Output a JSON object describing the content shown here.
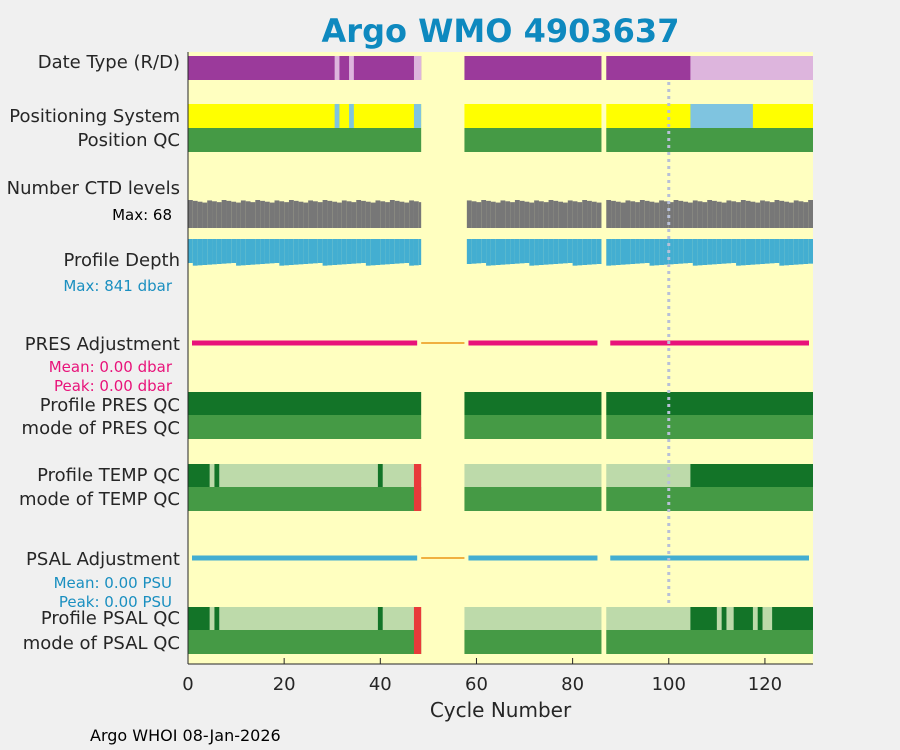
{
  "title": "Argo WMO 4903637",
  "footer": "Argo WHOI 08-Jan-2026",
  "rows": {
    "date_type": "Date Type (R/D)",
    "positioning": "Positioning System",
    "position_qc": "Position QC",
    "ctd_levels": "Number CTD levels",
    "ctd_max": "Max: 68",
    "profile_depth": "Profile Depth",
    "depth_max": "Max:  841 dbar",
    "pres_adj": "PRES Adjustment",
    "pres_mean": "Mean: 0.00 dbar",
    "pres_peak": "Peak: 0.00 dbar",
    "profile_pres_qc": "Profile PRES QC",
    "mode_pres_qc": "mode of PRES QC",
    "profile_temp_qc": "Profile TEMP QC",
    "mode_temp_qc": "mode of TEMP QC",
    "psal_adj": "PSAL Adjustment",
    "psal_mean": "Mean: 0.00 PSU",
    "psal_peak": "Peak: 0.00 PSU",
    "profile_psal_qc": "Profile PSAL QC",
    "mode_psal_qc": "mode of PSAL QC"
  },
  "colors": {
    "title": "#0e89bf",
    "background": "#ffffc0",
    "realtime": "#9b3a9b",
    "delayed": "#ddb5dd",
    "gps": "#ffff00",
    "iridium": "#7fc4e0",
    "qc_good": "#459a45",
    "qc_dark": "#137428",
    "qc_light": "#bddaaa",
    "qc_bad": "#e83a3a",
    "ctd": "#777777",
    "depth": "#43aed1",
    "pres_line": "#e8137a",
    "psal_line": "#43aed1",
    "gap_line": "#f0b040",
    "depth_text": "#1a8fc0",
    "pres_text": "#e8137a",
    "psal_text": "#1a8fc0",
    "marker": "#b8c0d8"
  },
  "chart_data": {
    "type": "table",
    "title": "Argo WMO 4903637",
    "xlabel": "Cycle Number",
    "ylabel": "",
    "xlim": [
      0,
      130
    ],
    "xticks": [
      0,
      20,
      40,
      60,
      80,
      100,
      120
    ],
    "marker_cycle": 100,
    "data_segments": [
      [
        0,
        48.5
      ],
      [
        57.5,
        86
      ],
      [
        87,
        130
      ]
    ],
    "date_type": {
      "delayed_ranges": [
        [
          30.5,
          31.5
        ],
        [
          33.5,
          34.5
        ],
        [
          47,
          48.5
        ],
        [
          104.5,
          130
        ]
      ]
    },
    "positioning": {
      "iridium_ranges": [
        [
          30.5,
          31.5
        ],
        [
          33.5,
          34.5
        ],
        [
          47,
          48.5
        ],
        [
          104.5,
          117.5
        ]
      ]
    },
    "ctd_levels_max": 68,
    "profile_depth_max_dbar": 841,
    "pres_adjustment": {
      "mean": 0.0,
      "peak": 0.0,
      "unit": "dbar"
    },
    "psal_adjustment": {
      "mean": 0.0,
      "peak": 0.0,
      "unit": "PSU"
    },
    "temp_profile_qc": {
      "dark_ranges": [
        [
          0,
          4.5
        ],
        [
          5.5,
          6.5
        ],
        [
          39.5,
          40.5
        ],
        [
          104.5,
          130
        ]
      ],
      "bad_ranges": [
        [
          47,
          48.5
        ]
      ]
    },
    "psal_profile_qc": {
      "dark_ranges": [
        [
          0,
          4.5
        ],
        [
          5.5,
          6.5
        ],
        [
          39.5,
          40.5
        ],
        [
          104.5,
          110
        ],
        [
          111,
          112
        ],
        [
          113.5,
          117.5
        ],
        [
          118.5,
          119.5
        ],
        [
          121.5,
          130
        ]
      ],
      "bad_ranges": [
        [
          47,
          48.5
        ]
      ]
    },
    "mode_bad_ranges": [
      [
        47,
        48.5
      ]
    ]
  }
}
